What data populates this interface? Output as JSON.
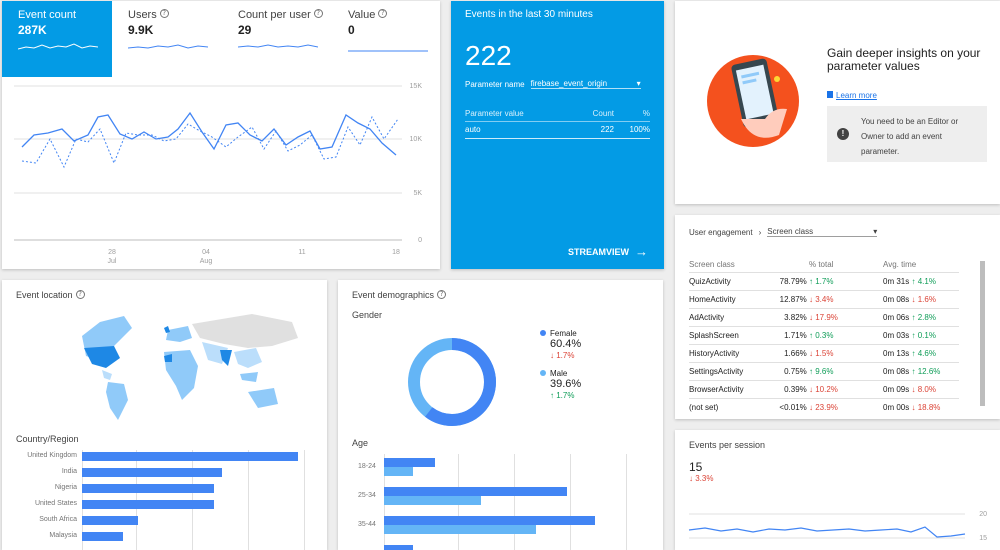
{
  "metrics": [
    {
      "label": "Event count",
      "value": "287K"
    },
    {
      "label": "Users",
      "value": "9.9K"
    },
    {
      "label": "Count per user",
      "value": "29"
    },
    {
      "label": "Value",
      "value": "0"
    }
  ],
  "main_chart": {
    "yticks": [
      "15K",
      "10K",
      "5K",
      "0"
    ],
    "xticks": [
      {
        "day": "28",
        "month": "Jul"
      },
      {
        "day": "04",
        "month": "Aug"
      },
      {
        "day": "11",
        "month": ""
      },
      {
        "day": "18",
        "month": ""
      }
    ]
  },
  "realtime": {
    "title": "Events in the last 30 minutes",
    "count": "222",
    "param_label": "Parameter name",
    "param_value": "firebase_event_origin",
    "col_value": "Parameter value",
    "col_count": "Count",
    "col_pct": "%",
    "row_value": "auto",
    "row_count": "222",
    "row_pct": "100%",
    "streamview": "STREAMVIEW"
  },
  "promo": {
    "title": "Gain deeper insights on your parameter values",
    "link": "Learn more",
    "notice": "You need to be an Editor or Owner to add an event parameter."
  },
  "engagement": {
    "breadcrumb": "User engagement",
    "selector": "Screen class",
    "headers": [
      "Screen class",
      "% total",
      "Avg. time"
    ],
    "rows": [
      {
        "name": "QuizActivity",
        "pct": "78.79%",
        "pct_chg": "1.7%",
        "pct_dir": "up",
        "time": "0m 31s",
        "time_chg": "4.1%",
        "time_dir": "up"
      },
      {
        "name": "HomeActivity",
        "pct": "12.87%",
        "pct_chg": "3.4%",
        "pct_dir": "down",
        "time": "0m 08s",
        "time_chg": "1.6%",
        "time_dir": "down"
      },
      {
        "name": "AdActivity",
        "pct": "3.82%",
        "pct_chg": "17.9%",
        "pct_dir": "down",
        "time": "0m 06s",
        "time_chg": "2.8%",
        "time_dir": "up"
      },
      {
        "name": "SplashScreen",
        "pct": "1.71%",
        "pct_chg": "0.3%",
        "pct_dir": "up",
        "time": "0m 03s",
        "time_chg": "0.1%",
        "time_dir": "up"
      },
      {
        "name": "HistoryActivity",
        "pct": "1.66%",
        "pct_chg": "1.5%",
        "pct_dir": "down",
        "time": "0m 13s",
        "time_chg": "4.6%",
        "time_dir": "up"
      },
      {
        "name": "SettingsActivity",
        "pct": "0.75%",
        "pct_chg": "9.6%",
        "pct_dir": "up",
        "time": "0m 08s",
        "time_chg": "12.6%",
        "time_dir": "up"
      },
      {
        "name": "BrowserActivity",
        "pct": "0.39%",
        "pct_chg": "10.2%",
        "pct_dir": "down",
        "time": "0m 09s",
        "time_chg": "8.0%",
        "time_dir": "down"
      },
      {
        "name": "(not set)",
        "pct": "<0.01%",
        "pct_chg": "23.9%",
        "pct_dir": "down",
        "time": "0m 00s",
        "time_chg": "18.8%",
        "time_dir": "down"
      }
    ]
  },
  "location": {
    "title": "Event location",
    "country_heading": "Country/Region",
    "countries": [
      {
        "name": "United Kingdom",
        "value": 100
      },
      {
        "name": "India",
        "value": 65
      },
      {
        "name": "Nigeria",
        "value": 61
      },
      {
        "name": "United States",
        "value": 61
      },
      {
        "name": "South Africa",
        "value": 26
      },
      {
        "name": "Malaysia",
        "value": 19
      }
    ]
  },
  "demographics": {
    "title": "Event demographics",
    "gender_heading": "Gender",
    "female_label": "Female",
    "female_pct": "60.4%",
    "female_chg": "1.7%",
    "male_label": "Male",
    "male_pct": "39.6%",
    "male_chg": "1.7%",
    "age_heading": "Age",
    "ages": [
      {
        "label": "18-24",
        "v1": 23,
        "v2": 13
      },
      {
        "label": "25-34",
        "v1": 83,
        "v2": 44
      },
      {
        "label": "35-44",
        "v1": 96,
        "v2": 69
      },
      {
        "label": "45-54",
        "v1": 13,
        "v2": 0
      }
    ]
  },
  "eps": {
    "title": "Events per session",
    "value": "15",
    "change": "3.3%",
    "ytick_top": "20",
    "ytick_mid": "15"
  },
  "colors": {
    "accent": "#039be5",
    "bar": "#4285f4",
    "bar_light": "#64b5f6",
    "up": "#0f9d58",
    "down": "#db4437"
  }
}
